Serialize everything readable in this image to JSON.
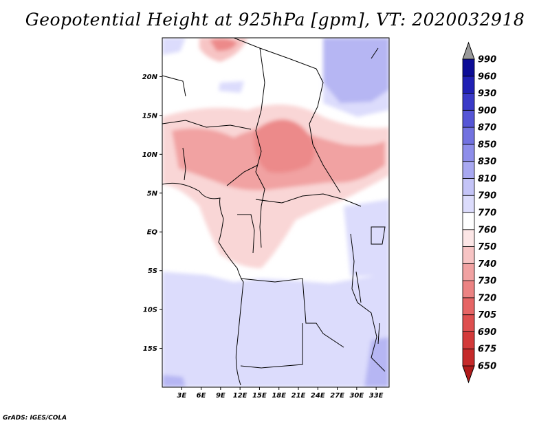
{
  "title": "Geopotential Height at 925hPa [gpm], VT: 2020032918",
  "footer": "GrADS: IGES/COLA",
  "map": {
    "lon_range_deg_e": [
      0,
      35
    ],
    "lat_range_deg": [
      -20,
      25
    ],
    "x_ticks": [
      "3E",
      "6E",
      "9E",
      "12E",
      "15E",
      "18E",
      "21E",
      "24E",
      "27E",
      "30E",
      "33E"
    ],
    "y_ticks": [
      "20N",
      "15N",
      "10N",
      "5N",
      "EQ",
      "5S",
      "10S",
      "15S"
    ]
  },
  "colorbar": {
    "levels": [
      "650",
      "675",
      "690",
      "705",
      "720",
      "730",
      "740",
      "750",
      "760",
      "770",
      "790",
      "810",
      "830",
      "850",
      "870",
      "900",
      "930",
      "960",
      "990"
    ],
    "colors": [
      "#b81d1d",
      "#c52a2a",
      "#d33a3a",
      "#de4f4f",
      "#e66565",
      "#ec8383",
      "#f1a2a2",
      "#f7c4c4",
      "#fce6e6",
      "#ffffff",
      "#dcdcfc",
      "#c4c4f7",
      "#a8a8f1",
      "#8e8eea",
      "#7272e0",
      "#5555d6",
      "#3a3ac8",
      "#2020b4",
      "#0c0c96"
    ],
    "extend_high_color": "#9a9a9a",
    "extend_low_color": "#b01a1a"
  }
}
